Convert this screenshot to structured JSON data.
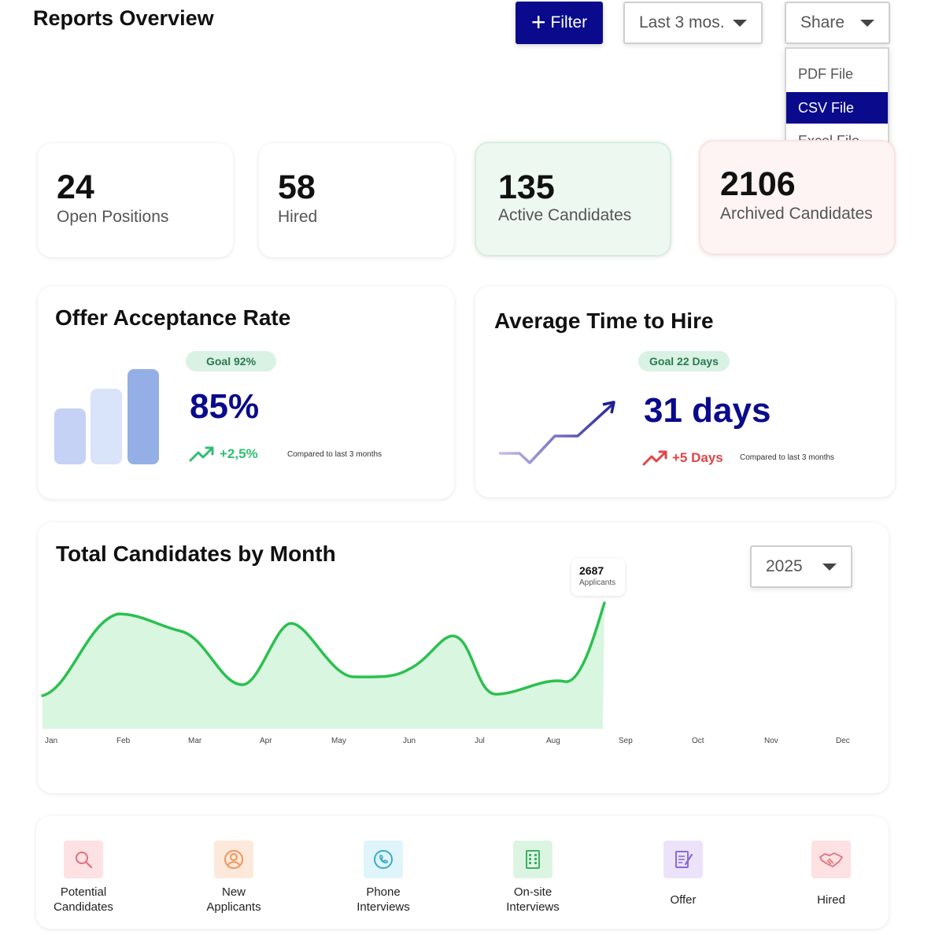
{
  "header": {
    "title": "Reports Overview"
  },
  "toolbar": {
    "filter_label": "Filter",
    "range_label": "Last 3 mos.",
    "share_label": "Share"
  },
  "share_menu": {
    "items": [
      "PDF File",
      "CSV File",
      "Excel File"
    ],
    "selected": "CSV File"
  },
  "stats": [
    {
      "value": "24",
      "label": "Open Positions"
    },
    {
      "value": "58",
      "label": "Hired"
    },
    {
      "value": "135",
      "label": "Active Candidates"
    },
    {
      "value": "2106",
      "label": "Archived Candidates"
    }
  ],
  "offer_rate": {
    "title": "Offer Acceptance Rate",
    "goal": "Goal 92%",
    "value": "85%",
    "trend": "+2,5%",
    "compare": "Compared to last 3 months"
  },
  "time_to_hire": {
    "title": "Average Time to Hire",
    "goal": "Goal 22 Days",
    "value": "31 days",
    "trend": "+5 Days",
    "compare": "Compared to last 3 months"
  },
  "candidates_chart": {
    "title": "Total Candidates by Month",
    "year": "2025",
    "tooltip": {
      "value": "2687",
      "label": "Applicants"
    }
  },
  "chart_data": {
    "type": "area",
    "categories": [
      "Jan",
      "Feb",
      "Mar",
      "Apr",
      "May",
      "Jun",
      "Jul",
      "Aug",
      "Sep",
      "Oct",
      "Nov",
      "Dec"
    ]
  },
  "stages": [
    {
      "label_lines": [
        "Potential",
        "Candidates"
      ],
      "icon": "search-icon"
    },
    {
      "label_lines": [
        "New",
        "Applicants"
      ],
      "icon": "user-icon"
    },
    {
      "label_lines": [
        "Phone",
        "Interviews"
      ],
      "icon": "phone-icon"
    },
    {
      "label_lines": [
        "On-site",
        "Interviews"
      ],
      "icon": "building-icon"
    },
    {
      "label_lines": [
        "Offer"
      ],
      "icon": "document-icon"
    },
    {
      "label_lines": [
        "Hired"
      ],
      "icon": "handshake-icon"
    }
  ],
  "colors": {
    "accent": "#0a0a8c",
    "positive": "#2fbf71",
    "negative": "#e0454a",
    "area_fill": "#d8f6e0",
    "area_line": "#2cc04f"
  }
}
